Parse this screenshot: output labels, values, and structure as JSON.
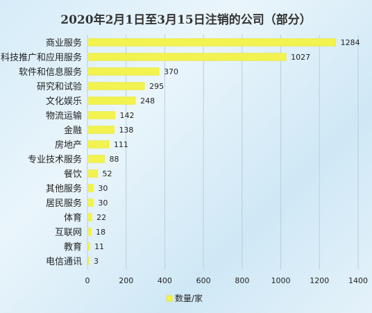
{
  "chart_data": {
    "type": "bar",
    "orientation": "horizontal",
    "title": "2020年2月1日至3月15日注销的公司（部分）",
    "categories": [
      "商业服务",
      "科技推广和应用服务",
      "软件和信息服务",
      "研究和试验",
      "文化娱乐",
      "物流运输",
      "金融",
      "房地产",
      "专业技术服务",
      "餐饮",
      "其他服务",
      "居民服务",
      "体育",
      "互联网",
      "教育",
      "电信通讯"
    ],
    "series": [
      {
        "name": "数量/家",
        "values": [
          1284,
          1027,
          370,
          295,
          248,
          142,
          138,
          111,
          88,
          52,
          30,
          30,
          22,
          18,
          11,
          3
        ]
      }
    ],
    "xlim": [
      0,
      1400
    ],
    "xticks": [
      0,
      200,
      400,
      600,
      800,
      1000,
      1200,
      1400
    ],
    "grid": true,
    "legend": "bottom",
    "data_labels": true,
    "colors": {
      "bar": "#f2f250",
      "bar_edge": "#e6e63a",
      "grid": "#b9cfdc",
      "text": "#222222",
      "title": "#333333"
    }
  }
}
